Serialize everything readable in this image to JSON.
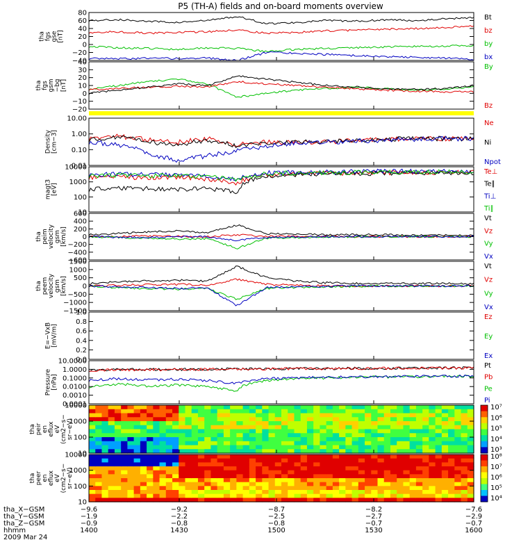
{
  "title": "P5 (TH-A) fields and on-board moments overview",
  "colors": {
    "black": "#000000",
    "red": "#e00000",
    "green": "#00c000",
    "blue": "#0000c0",
    "yellow": "#ffff00"
  },
  "chart_data": [
    {
      "type": "line",
      "panel": "fgs-gse",
      "ylabel": [
        "tha",
        "fgs",
        "gse",
        "[nT]"
      ],
      "ylim": [
        -40,
        80
      ],
      "yticks": [
        "80",
        "60",
        "40",
        "20",
        "0",
        "−20",
        "−40"
      ],
      "series": [
        {
          "name": "Bt",
          "color": "#000000",
          "values": [
            60,
            62,
            58,
            55,
            60,
            70,
            52,
            55,
            60,
            58,
            62,
            60,
            64,
            68
          ]
        },
        {
          "name": "bz",
          "color": "#e00000",
          "values": [
            30,
            32,
            28,
            30,
            32,
            36,
            28,
            30,
            34,
            36,
            38,
            40,
            42,
            46
          ]
        },
        {
          "name": "by",
          "color": "#00c000",
          "values": [
            -5,
            -8,
            -10,
            -12,
            -8,
            -10,
            -18,
            -12,
            -10,
            -8,
            -6,
            -5,
            -4,
            -3
          ]
        },
        {
          "name": "bx",
          "color": "#0000c0",
          "values": [
            -35,
            -36,
            -34,
            -35,
            -34,
            -40,
            -20,
            -22,
            -25,
            -28,
            -30,
            -32,
            -34,
            -38
          ]
        }
      ]
    },
    {
      "type": "line",
      "panel": "fgs-gsm",
      "ylabel": [
        "tha",
        "fgs",
        "gsm",
        "−bg",
        "[nT]"
      ],
      "ylim": [
        -20,
        40
      ],
      "yticks": [
        "40",
        "30",
        "20",
        "10",
        "0",
        "−10",
        "−20"
      ],
      "series": [
        {
          "name": "By",
          "color": "#00c000",
          "values": [
            5,
            10,
            15,
            18,
            12,
            -5,
            0,
            4,
            6,
            8,
            6,
            4,
            5,
            8
          ]
        },
        {
          "name": "Bz",
          "color": "#e00000",
          "values": [
            5,
            6,
            8,
            9,
            8,
            15,
            12,
            10,
            8,
            6,
            4,
            3,
            2,
            2
          ]
        },
        {
          "name": "",
          "color": "#000000",
          "values": [
            0,
            4,
            8,
            12,
            10,
            22,
            18,
            14,
            10,
            8,
            6,
            5,
            6,
            10
          ]
        }
      ]
    },
    {
      "type": "line",
      "panel": "density",
      "ylabel": [
        "Density",
        "[cm−3]"
      ],
      "log": true,
      "ylim": [
        0.01,
        10
      ],
      "yticks": [
        "10.00",
        "1.00",
        "0.10",
        "0.01"
      ],
      "series": [
        {
          "name": "Ne",
          "color": "#e00000",
          "values": [
            0.5,
            0.7,
            0.4,
            0.3,
            0.5,
            0.2,
            0.3,
            0.3,
            0.3,
            0.4,
            0.45,
            0.5,
            0.5,
            0.5
          ]
        },
        {
          "name": "Ni",
          "color": "#000000",
          "values": [
            0.4,
            0.6,
            0.3,
            0.2,
            0.4,
            0.15,
            0.25,
            0.3,
            0.3,
            0.4,
            0.45,
            0.5,
            0.5,
            0.5
          ]
        },
        {
          "name": "Npot",
          "color": "#0000c0",
          "values": [
            0.3,
            0.2,
            0.05,
            0.02,
            0.04,
            0.08,
            0.15,
            0.25,
            0.3,
            0.35,
            0.4,
            0.45,
            0.5,
            0.5
          ]
        }
      ]
    },
    {
      "type": "line",
      "panel": "temperature",
      "ylabel": [
        "magt3",
        "[eV]"
      ],
      "log": true,
      "ylim": [
        10,
        10000
      ],
      "yticks": [
        "10000",
        "1000",
        "100",
        "10"
      ],
      "series": [
        {
          "name": "Te⊥",
          "color": "#e00000",
          "values": [
            2000,
            2200,
            1800,
            2000,
            1500,
            800,
            3000,
            3500,
            3600,
            3800,
            4000,
            4200,
            4300,
            4500
          ]
        },
        {
          "name": "Te∥",
          "color": "#000000",
          "values": [
            300,
            400,
            350,
            300,
            350,
            200,
            2500,
            3000,
            3200,
            3500,
            3800,
            4000,
            4100,
            4200
          ]
        },
        {
          "name": "Ti⊥",
          "color": "#0000c0",
          "values": [
            3000,
            3200,
            3000,
            2800,
            2500,
            1500,
            4000,
            4200,
            4500,
            4800,
            5000,
            5000,
            5200,
            5200
          ]
        },
        {
          "name": "Ti∥",
          "color": "#00c000",
          "values": [
            2500,
            2800,
            2600,
            2500,
            2200,
            1200,
            3500,
            3800,
            4000,
            4200,
            4300,
            4500,
            4600,
            4600
          ]
        }
      ]
    },
    {
      "type": "line",
      "panel": "peim-velocity",
      "ylabel": [
        "tha",
        "peim",
        "velocity",
        "gsm",
        "[km/s]"
      ],
      "ylim": [
        -600,
        600
      ],
      "yticks": [
        "600",
        "400",
        "200",
        "0",
        "−200",
        "−400",
        "−600"
      ],
      "series": [
        {
          "name": "Vt",
          "color": "#000000",
          "values": [
            50,
            80,
            120,
            150,
            100,
            300,
            80,
            60,
            50,
            50,
            50,
            40,
            40,
            40
          ]
        },
        {
          "name": "Vz",
          "color": "#e00000",
          "values": [
            0,
            10,
            20,
            10,
            0,
            50,
            10,
            5,
            0,
            0,
            0,
            0,
            0,
            0
          ]
        },
        {
          "name": "Vy",
          "color": "#00c000",
          "values": [
            0,
            -20,
            -40,
            -60,
            -50,
            -300,
            -40,
            -20,
            -10,
            -5,
            0,
            0,
            0,
            0
          ]
        },
        {
          "name": "Vx",
          "color": "#0000c0",
          "values": [
            0,
            -10,
            -20,
            -10,
            0,
            -100,
            -20,
            -10,
            0,
            0,
            0,
            0,
            0,
            0
          ]
        }
      ]
    },
    {
      "type": "line",
      "panel": "peem-velocity",
      "ylabel": [
        "tha",
        "peem",
        "velocity",
        "gsm",
        "[km/s]"
      ],
      "ylim": [
        -1500,
        1500
      ],
      "yticks": [
        "1500",
        "1000",
        "500",
        "0",
        "−500",
        "−1000",
        "−1500"
      ],
      "series": [
        {
          "name": "Vt",
          "color": "#000000",
          "values": [
            150,
            250,
            300,
            350,
            300,
            1200,
            500,
            300,
            200,
            150,
            150,
            150,
            150,
            150
          ]
        },
        {
          "name": "Vz",
          "color": "#e00000",
          "values": [
            0,
            50,
            80,
            100,
            50,
            400,
            100,
            50,
            20,
            0,
            0,
            0,
            0,
            0
          ]
        },
        {
          "name": "Vy",
          "color": "#00c000",
          "values": [
            0,
            -100,
            -150,
            -200,
            -150,
            -800,
            -150,
            -80,
            -50,
            -20,
            0,
            0,
            0,
            0
          ]
        },
        {
          "name": "Vx",
          "color": "#0000c0",
          "values": [
            0,
            -50,
            -100,
            -150,
            -100,
            -1200,
            -100,
            -50,
            -20,
            0,
            0,
            0,
            0,
            0
          ]
        }
      ]
    },
    {
      "type": "line",
      "panel": "efield",
      "ylabel": [
        "E=−VxB",
        "[mV/m]"
      ],
      "ylim": [
        0,
        1
      ],
      "yticks": [
        "1.0",
        "0.8",
        "0.6",
        "0.4",
        "0.2",
        "0.0"
      ],
      "series": [
        {
          "name": "Ez",
          "color": "#e00000",
          "values": []
        },
        {
          "name": "Ey",
          "color": "#00c000",
          "values": []
        },
        {
          "name": "Ex",
          "color": "#0000c0",
          "values": []
        }
      ]
    },
    {
      "type": "line",
      "panel": "pressure",
      "ylabel": [
        "Pressure",
        "[nPa]"
      ],
      "log": true,
      "ylim": [
        0.0001,
        10
      ],
      "yticks": [
        "10.0000",
        "1.0000",
        "0.1000",
        "0.0100",
        "0.0010",
        "0.0001"
      ],
      "series": [
        {
          "name": "Pt",
          "color": "#000000",
          "values": [
            0.8,
            0.9,
            1.0,
            1.0,
            1.0,
            1.1,
            1.1,
            1.2,
            1.2,
            1.3,
            1.3,
            1.4,
            1.4,
            1.5
          ]
        },
        {
          "name": "Pb",
          "color": "#e00000",
          "values": [
            0.8,
            0.85,
            0.9,
            0.95,
            1.0,
            1.05,
            1.1,
            1.15,
            1.2,
            1.25,
            1.3,
            1.35,
            1.4,
            1.45
          ]
        },
        {
          "name": "Pe",
          "color": "#00c000",
          "values": [
            0.01,
            0.02,
            0.01,
            0.015,
            0.01,
            0.002,
            0.05,
            0.08,
            0.1,
            0.12,
            0.13,
            0.14,
            0.15,
            0.15
          ]
        },
        {
          "name": "Pi",
          "color": "#0000c0",
          "values": [
            0.05,
            0.08,
            0.06,
            0.07,
            0.05,
            0.02,
            0.08,
            0.1,
            0.12,
            0.13,
            0.14,
            0.15,
            0.16,
            0.17
          ]
        }
      ]
    },
    {
      "type": "heatmap",
      "panel": "peir",
      "ylabel": [
        "tha",
        "peir",
        "en",
        "eflux",
        "eV",
        "(cm2−s−",
        "sr−eV)"
      ],
      "log": true,
      "ylim": [
        10,
        10000
      ],
      "yticks": [
        "10000",
        "1000",
        "100",
        "10"
      ],
      "colorbar": [
        "10⁷",
        "10⁶",
        "10⁵",
        "10⁴",
        "10³"
      ]
    },
    {
      "type": "heatmap",
      "panel": "peer",
      "ylabel": [
        "tha",
        "peer",
        "en",
        "eflux",
        "eV",
        "(cm2−s−",
        "sr−eV)"
      ],
      "log": true,
      "ylim": [
        10,
        10000
      ],
      "yticks": [
        "10000",
        "1000",
        "100",
        "10"
      ],
      "colorbar": [
        "10⁸",
        "10⁷",
        "10⁶",
        "10⁵",
        "10⁴"
      ]
    }
  ],
  "xaxis": {
    "rows": [
      {
        "label": "tha_X−GSM",
        "values": [
          "−9.6",
          "−9.2",
          "−8.7",
          "−8.2",
          "−7.6"
        ]
      },
      {
        "label": "tha_Y−GSM",
        "values": [
          "−1.9",
          "−2.2",
          "−2.5",
          "−2.7",
          "−2.9"
        ]
      },
      {
        "label": "tha_Z−GSM",
        "values": [
          "−0.9",
          "−0.8",
          "−0.8",
          "−0.7",
          "−0.7"
        ]
      },
      {
        "label": "hhmm",
        "values": [
          "1400",
          "1430",
          "1500",
          "1530",
          "1600"
        ]
      }
    ],
    "date": "2009 Mar 24"
  }
}
